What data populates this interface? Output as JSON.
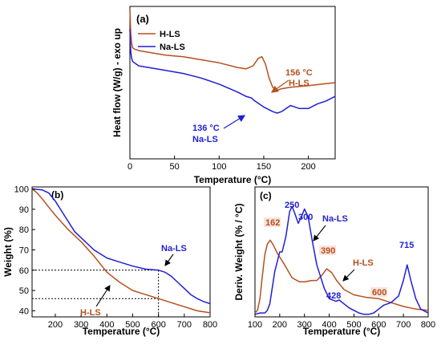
{
  "colors": {
    "h_ls": "#b5501f",
    "na_ls": "#1f1fd6",
    "axis": "#000000"
  },
  "chart_data": [
    {
      "panel": "(a)",
      "type": "line",
      "xlabel": "Temperature (°C)",
      "ylabel": "Heat flow (W/g) - exo up",
      "xlim": [
        0,
        230
      ],
      "ylim": [
        0,
        1
      ],
      "x_ticks": [
        "0",
        "50",
        "100",
        "150",
        "200"
      ],
      "y_ticks": [],
      "legend": {
        "position": "top-left",
        "items": [
          "H-LS",
          "Na-LS"
        ]
      },
      "annotations": [
        {
          "line1": "156 °C",
          "line2": "H-LS",
          "series": "H-LS"
        },
        {
          "line1": "136 °C",
          "line2": "Na-LS",
          "series": "Na-LS"
        }
      ],
      "series": [
        {
          "name": "H-LS",
          "x": [
            0,
            1,
            2,
            3,
            5,
            10,
            20,
            40,
            60,
            80,
            100,
            120,
            130,
            138,
            144,
            148,
            152,
            156,
            160,
            165,
            170,
            180,
            200,
            230
          ],
          "y": [
            0.98,
            0.82,
            0.76,
            0.73,
            0.72,
            0.71,
            0.7,
            0.68,
            0.67,
            0.65,
            0.63,
            0.6,
            0.59,
            0.61,
            0.66,
            0.67,
            0.62,
            0.53,
            0.47,
            0.45,
            0.46,
            0.47,
            0.48,
            0.5
          ]
        },
        {
          "name": "Na-LS",
          "x": [
            0,
            1,
            2,
            3,
            5,
            10,
            20,
            40,
            60,
            80,
            100,
            120,
            130,
            136,
            140,
            150,
            160,
            165,
            170,
            175,
            180,
            185,
            190,
            200,
            210,
            220,
            230
          ],
          "y": [
            0.85,
            0.7,
            0.66,
            0.64,
            0.63,
            0.61,
            0.6,
            0.58,
            0.56,
            0.53,
            0.49,
            0.44,
            0.41,
            0.4,
            0.38,
            0.34,
            0.31,
            0.3,
            0.31,
            0.33,
            0.35,
            0.34,
            0.33,
            0.33,
            0.36,
            0.38,
            0.41
          ]
        }
      ]
    },
    {
      "panel": "(b)",
      "type": "line",
      "xlabel": "Temperature (°C)",
      "ylabel": "Weight (%)",
      "xlim": [
        110,
        800
      ],
      "ylim": [
        37,
        101
      ],
      "x_ticks": [
        "200",
        "300",
        "400",
        "500",
        "600",
        "700",
        "800"
      ],
      "y_ticks": [
        "40",
        "50",
        "60",
        "70",
        "80",
        "90",
        "100"
      ],
      "reference": {
        "x": 600,
        "y_values": [
          60,
          46
        ]
      },
      "annotations": [
        {
          "text": "Na-LS",
          "series": "Na-LS"
        },
        {
          "text": "H-LS",
          "series": "H-LS"
        }
      ],
      "series": [
        {
          "name": "H-LS",
          "x": [
            110,
            130,
            150,
            175,
            200,
            250,
            300,
            350,
            400,
            450,
            500,
            550,
            600,
            650,
            700,
            750,
            800
          ],
          "y": [
            100,
            98,
            95,
            91,
            87,
            80,
            74,
            67,
            59,
            54,
            50,
            48,
            46,
            44,
            42,
            40,
            39
          ]
        },
        {
          "name": "Na-LS",
          "x": [
            110,
            150,
            175,
            200,
            225,
            250,
            275,
            300,
            350,
            400,
            450,
            500,
            550,
            600,
            625,
            650,
            675,
            700,
            725,
            750,
            775,
            800
          ],
          "y": [
            100,
            99.5,
            98,
            94,
            89,
            84,
            79,
            76,
            70,
            66,
            64,
            62,
            60.5,
            60,
            59,
            57,
            54,
            51,
            48,
            46,
            44.5,
            43.5
          ]
        }
      ]
    },
    {
      "panel": "(c)",
      "type": "line",
      "xlabel": "Temperature (°C)",
      "ylabel": "Deriv. Weight (% / °C)",
      "xlim": [
        100,
        800
      ],
      "ylim": [
        0,
        1
      ],
      "x_ticks": [
        "100",
        "200",
        "300",
        "400",
        "500",
        "600",
        "700",
        "800"
      ],
      "y_ticks": [],
      "annotations": [
        {
          "text": "162",
          "series": "H-LS"
        },
        {
          "text": "250",
          "series": "Na-LS"
        },
        {
          "text": "300",
          "series": "Na-LS"
        },
        {
          "text": "Na-LS",
          "series": "Na-LS"
        },
        {
          "text": "390",
          "series": "H-LS"
        },
        {
          "text": "H-LS",
          "series": "H-LS"
        },
        {
          "text": "428",
          "series": "Na-LS"
        },
        {
          "text": "600",
          "series": "H-LS"
        },
        {
          "text": "715",
          "series": "Na-LS"
        }
      ],
      "series": [
        {
          "name": "H-LS",
          "x": [
            100,
            110,
            120,
            130,
            140,
            150,
            162,
            175,
            190,
            200,
            220,
            250,
            280,
            300,
            330,
            350,
            370,
            390,
            410,
            430,
            460,
            500,
            550,
            600,
            650,
            700,
            750,
            800
          ],
          "y": [
            0.03,
            0.05,
            0.14,
            0.32,
            0.48,
            0.56,
            0.59,
            0.55,
            0.49,
            0.46,
            0.4,
            0.3,
            0.27,
            0.27,
            0.28,
            0.28,
            0.32,
            0.37,
            0.34,
            0.28,
            0.21,
            0.17,
            0.15,
            0.14,
            0.11,
            0.08,
            0.06,
            0.05
          ]
        },
        {
          "name": "Na-LS",
          "x": [
            100,
            120,
            140,
            150,
            160,
            180,
            200,
            210,
            225,
            240,
            250,
            260,
            275,
            290,
            300,
            315,
            330,
            350,
            380,
            400,
            428,
            440,
            460,
            480,
            500,
            520,
            540,
            560,
            580,
            600,
            620,
            650,
            680,
            700,
            715,
            730,
            750,
            770,
            800
          ],
          "y": [
            0.02,
            0.03,
            0.03,
            0.05,
            0.1,
            0.35,
            0.5,
            0.5,
            0.62,
            0.81,
            0.85,
            0.8,
            0.72,
            0.78,
            0.83,
            0.77,
            0.6,
            0.4,
            0.22,
            0.14,
            0.12,
            0.13,
            0.1,
            0.07,
            0.05,
            0.03,
            0.02,
            0.02,
            0.03,
            0.06,
            0.09,
            0.11,
            0.16,
            0.28,
            0.4,
            0.28,
            0.14,
            0.06,
            0.03
          ]
        }
      ]
    }
  ]
}
